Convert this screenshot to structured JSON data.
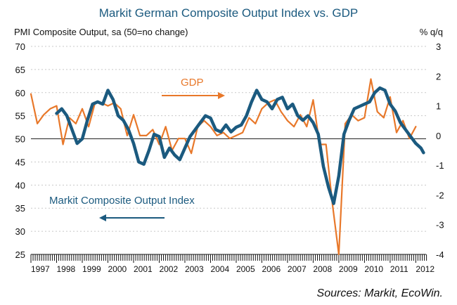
{
  "chart_data": {
    "type": "line",
    "title": "Markit German Composite Output Index vs. GDP",
    "ylabel_left": "PMI Composite Output, sa (50=no change)",
    "ylabel_right": "% q/q",
    "source": "Sources: Markit, EcoWin.",
    "ylim_left": [
      25,
      70
    ],
    "ylim_right": [
      -4,
      3
    ],
    "yticks_left": [
      "70",
      "65",
      "60",
      "55",
      "50",
      "45",
      "40",
      "35",
      "30",
      "25"
    ],
    "yticks_right": [
      "3",
      "2",
      "1",
      "0",
      "-1",
      "-2",
      "-3",
      "-4"
    ],
    "x_range": [
      1997.0,
      2012.4
    ],
    "x_tick_labels": [
      "1997",
      "1998",
      "1999",
      "2000",
      "2001",
      "2002",
      "2003",
      "2004",
      "2005",
      "2006",
      "2007",
      "2008",
      "2009",
      "2010",
      "2011",
      "2012"
    ],
    "grid": "horizontal dotted",
    "annotations": [
      {
        "text": "GDP",
        "series": "gdp"
      },
      {
        "text": "Markit Composite Output Index",
        "series": "pmi"
      }
    ],
    "series": [
      {
        "name": "Markit Composite Output Index",
        "axis": "left",
        "color": "#1b5a7f",
        "x": [
          1998.0,
          1998.2,
          1998.4,
          1998.6,
          1998.8,
          1999.0,
          1999.2,
          1999.4,
          1999.6,
          1999.8,
          2000.0,
          2000.2,
          2000.4,
          2000.6,
          2000.8,
          2001.0,
          2001.2,
          2001.4,
          2001.6,
          2001.8,
          2002.0,
          2002.2,
          2002.4,
          2002.6,
          2002.8,
          2003.0,
          2003.2,
          2003.4,
          2003.6,
          2003.8,
          2004.0,
          2004.2,
          2004.4,
          2004.6,
          2004.8,
          2005.0,
          2005.2,
          2005.4,
          2005.6,
          2005.8,
          2006.0,
          2006.2,
          2006.4,
          2006.6,
          2006.8,
          2007.0,
          2007.2,
          2007.4,
          2007.6,
          2007.8,
          2008.0,
          2008.2,
          2008.4,
          2008.6,
          2008.8,
          2009.0,
          2009.2,
          2009.4,
          2009.6,
          2009.8,
          2010.0,
          2010.2,
          2010.4,
          2010.6,
          2010.8,
          2011.0,
          2011.2,
          2011.4,
          2011.6,
          2011.8,
          2012.0,
          2012.2,
          2012.3
        ],
        "values": [
          55.5,
          56.5,
          55.0,
          52.0,
          49.0,
          50.0,
          54.0,
          57.5,
          58.0,
          57.5,
          60.5,
          58.5,
          55.0,
          54.0,
          52.0,
          49.0,
          45.0,
          44.5,
          47.5,
          51.0,
          50.5,
          46.0,
          48.0,
          46.5,
          45.5,
          48.0,
          50.5,
          52.0,
          53.5,
          55.0,
          54.5,
          52.0,
          51.5,
          53.0,
          51.5,
          52.5,
          53.0,
          55.0,
          58.0,
          60.5,
          58.5,
          58.0,
          56.5,
          58.5,
          59.0,
          56.5,
          57.5,
          55.0,
          54.0,
          55.0,
          53.5,
          51.0,
          44.0,
          39.5,
          36.0,
          42.0,
          51.0,
          54.0,
          56.5,
          57.0,
          57.5,
          58.0,
          60.0,
          61.0,
          60.5,
          57.5,
          56.0,
          53.5,
          52.0,
          50.5,
          49.0,
          48.0,
          47.0
        ]
      },
      {
        "name": "GDP",
        "axis": "right",
        "color": "#e8782a",
        "x": [
          1997.0,
          1997.25,
          1997.5,
          1997.75,
          1998.0,
          1998.25,
          1998.5,
          1998.75,
          1999.0,
          1999.25,
          1999.5,
          1999.75,
          2000.0,
          2000.25,
          2000.5,
          2000.75,
          2001.0,
          2001.25,
          2001.5,
          2001.75,
          2002.0,
          2002.25,
          2002.5,
          2002.75,
          2003.0,
          2003.25,
          2003.5,
          2003.75,
          2004.0,
          2004.25,
          2004.5,
          2004.75,
          2005.0,
          2005.25,
          2005.5,
          2005.75,
          2006.0,
          2006.25,
          2006.5,
          2006.75,
          2007.0,
          2007.25,
          2007.5,
          2007.75,
          2008.0,
          2008.25,
          2008.5,
          2008.75,
          2009.0,
          2009.25,
          2009.5,
          2009.75,
          2010.0,
          2010.25,
          2010.5,
          2010.75,
          2011.0,
          2011.25,
          2011.5,
          2011.75,
          2012.0
        ],
        "values": [
          1.4,
          0.4,
          0.7,
          0.9,
          1.0,
          -0.3,
          0.6,
          0.4,
          0.9,
          0.3,
          1.1,
          1.1,
          1.0,
          1.1,
          0.9,
          0.0,
          0.7,
          0.0,
          0.0,
          0.2,
          -0.3,
          0.3,
          -0.5,
          -0.1,
          -0.1,
          -0.6,
          0.3,
          0.5,
          0.3,
          0.0,
          0.1,
          -0.1,
          0.0,
          0.1,
          0.6,
          0.4,
          0.9,
          1.1,
          1.2,
          0.8,
          0.5,
          0.3,
          0.7,
          0.3,
          1.2,
          -0.3,
          -0.3,
          -2.3,
          -4.0,
          0.4,
          0.7,
          0.5,
          0.6,
          1.9,
          0.8,
          0.6,
          1.3,
          0.1,
          0.5,
          -0.1,
          0.3
        ]
      }
    ]
  }
}
